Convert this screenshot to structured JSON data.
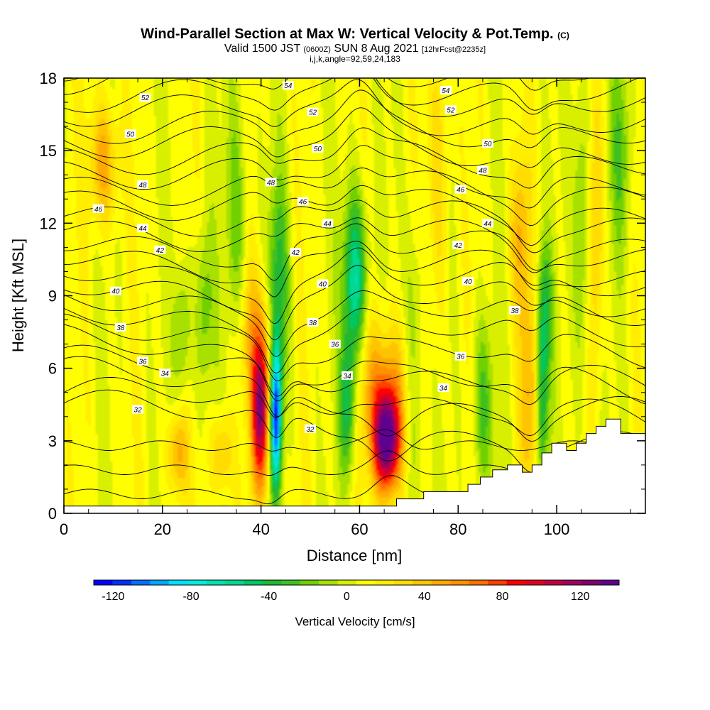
{
  "header": {
    "title": "Wind-Parallel Section at Max W: Vertical Velocity & Pot.Temp.",
    "title_mark": "(C)",
    "valid_main": "Valid 1500 JST",
    "valid_utc": "(0600Z)",
    "valid_date": "SUN 8 Aug 2021",
    "forecast": "[12hrFcst@2235z]",
    "indices": "i,j,k,angle=92,59,24,183"
  },
  "chart_data": {
    "type": "heatmap",
    "xlabel": "Distance [nm]",
    "ylabel": "Height [Kft MSL]",
    "xlim": [
      0,
      118
    ],
    "ylim": [
      0,
      18
    ],
    "x_ticks": [
      "0",
      "20",
      "40",
      "60",
      "80",
      "100"
    ],
    "y_ticks": [
      "0",
      "3",
      "6",
      "9",
      "12",
      "15",
      "18"
    ],
    "colorbar": {
      "label": "Vertical Velocity [cm/s]",
      "range": [
        -130,
        140
      ],
      "tick_labels": [
        "-120",
        "-80",
        "-40",
        "0",
        "40",
        "80",
        "120"
      ],
      "colors": [
        "#0000ff",
        "#0030ff",
        "#0070ff",
        "#00a8ff",
        "#00e0ff",
        "#00eedd",
        "#00e0b0",
        "#00d890",
        "#00c860",
        "#20b830",
        "#40c020",
        "#70d000",
        "#a8e000",
        "#d8f000",
        "#ffff00",
        "#ffee00",
        "#ffdd00",
        "#ffc400",
        "#ffaa00",
        "#ff9000",
        "#ff7000",
        "#ff4000",
        "#ff0000",
        "#e00020",
        "#c00040",
        "#a00060",
        "#800070",
        "#600090"
      ]
    },
    "features": [
      {
        "type": "updraft",
        "x": 40,
        "z": 4.0,
        "peak": 110
      },
      {
        "type": "downdraft",
        "x": 43,
        "z": 4.0,
        "peak": -120
      },
      {
        "type": "downdraft",
        "x": 59,
        "z": 9.5,
        "peak": -80
      },
      {
        "type": "updraft",
        "x": 65.5,
        "z": 3.0,
        "peak": 135
      },
      {
        "type": "downdraft",
        "x": 97,
        "z": 5.0,
        "peak": -70
      }
    ],
    "isentropes": {
      "levels": [
        32,
        34,
        36,
        38,
        40,
        42,
        44,
        46,
        48,
        50,
        52,
        54
      ],
      "labels": [
        {
          "text": "32",
          "x": 15,
          "z": 4.3
        },
        {
          "text": "32",
          "x": 50,
          "z": 3.5
        },
        {
          "text": "34",
          "x": 20.5,
          "z": 5.8
        },
        {
          "text": "34",
          "x": 57.5,
          "z": 5.7
        },
        {
          "text": "34",
          "x": 77,
          "z": 5.2
        },
        {
          "text": "36",
          "x": 16,
          "z": 6.3
        },
        {
          "text": "36",
          "x": 55,
          "z": 7.0
        },
        {
          "text": "36",
          "x": 80.5,
          "z": 6.5
        },
        {
          "text": "38",
          "x": 11.5,
          "z": 7.7
        },
        {
          "text": "38",
          "x": 50.5,
          "z": 7.9
        },
        {
          "text": "38",
          "x": 91.5,
          "z": 8.4
        },
        {
          "text": "40",
          "x": 10.5,
          "z": 9.2
        },
        {
          "text": "40",
          "x": 52.5,
          "z": 9.5
        },
        {
          "text": "40",
          "x": 82,
          "z": 9.6
        },
        {
          "text": "42",
          "x": 19.5,
          "z": 10.9
        },
        {
          "text": "42",
          "x": 47,
          "z": 10.8
        },
        {
          "text": "42",
          "x": 80,
          "z": 11.1
        },
        {
          "text": "44",
          "x": 16,
          "z": 11.8
        },
        {
          "text": "44",
          "x": 53.5,
          "z": 12.0
        },
        {
          "text": "44",
          "x": 86,
          "z": 12.0
        },
        {
          "text": "46",
          "x": 7,
          "z": 12.6
        },
        {
          "text": "46",
          "x": 48.5,
          "z": 12.9
        },
        {
          "text": "46",
          "x": 80.5,
          "z": 13.4
        },
        {
          "text": "48",
          "x": 16,
          "z": 13.6
        },
        {
          "text": "48",
          "x": 42,
          "z": 13.7
        },
        {
          "text": "48",
          "x": 85,
          "z": 14.2
        },
        {
          "text": "50",
          "x": 13.5,
          "z": 15.7
        },
        {
          "text": "50",
          "x": 51.5,
          "z": 15.1
        },
        {
          "text": "50",
          "x": 86,
          "z": 15.3
        },
        {
          "text": "52",
          "x": 16.5,
          "z": 17.2
        },
        {
          "text": "52",
          "x": 50.5,
          "z": 16.6
        },
        {
          "text": "52",
          "x": 78.5,
          "z": 16.7
        },
        {
          "text": "54",
          "x": 45.5,
          "z": 17.7
        },
        {
          "text": "54",
          "x": 77.5,
          "z": 17.5
        }
      ]
    },
    "terrain": [
      [
        0,
        0.3
      ],
      [
        20,
        0.3
      ],
      [
        40,
        0.3
      ],
      [
        66,
        0.3
      ],
      [
        67.5,
        0.3
      ],
      [
        67.5,
        0.6
      ],
      [
        73,
        0.6
      ],
      [
        73,
        0.9
      ],
      [
        82,
        0.9
      ],
      [
        82,
        1.2
      ],
      [
        84.5,
        1.2
      ],
      [
        84.5,
        1.5
      ],
      [
        87,
        1.5
      ],
      [
        87,
        1.8
      ],
      [
        90,
        1.8
      ],
      [
        90,
        2.0
      ],
      [
        93,
        2.0
      ],
      [
        93,
        1.7
      ],
      [
        95,
        1.7
      ],
      [
        95,
        2.0
      ],
      [
        97,
        2.0
      ],
      [
        97,
        2.5
      ],
      [
        99,
        2.5
      ],
      [
        99,
        2.9
      ],
      [
        102,
        2.9
      ],
      [
        102,
        2.6
      ],
      [
        104,
        2.6
      ],
      [
        104,
        2.9
      ],
      [
        106,
        2.9
      ],
      [
        106,
        3.3
      ],
      [
        108,
        3.3
      ],
      [
        108,
        3.6
      ],
      [
        110,
        3.6
      ],
      [
        110,
        3.9
      ],
      [
        113,
        3.9
      ],
      [
        113,
        3.3
      ],
      [
        118,
        3.3
      ]
    ]
  }
}
